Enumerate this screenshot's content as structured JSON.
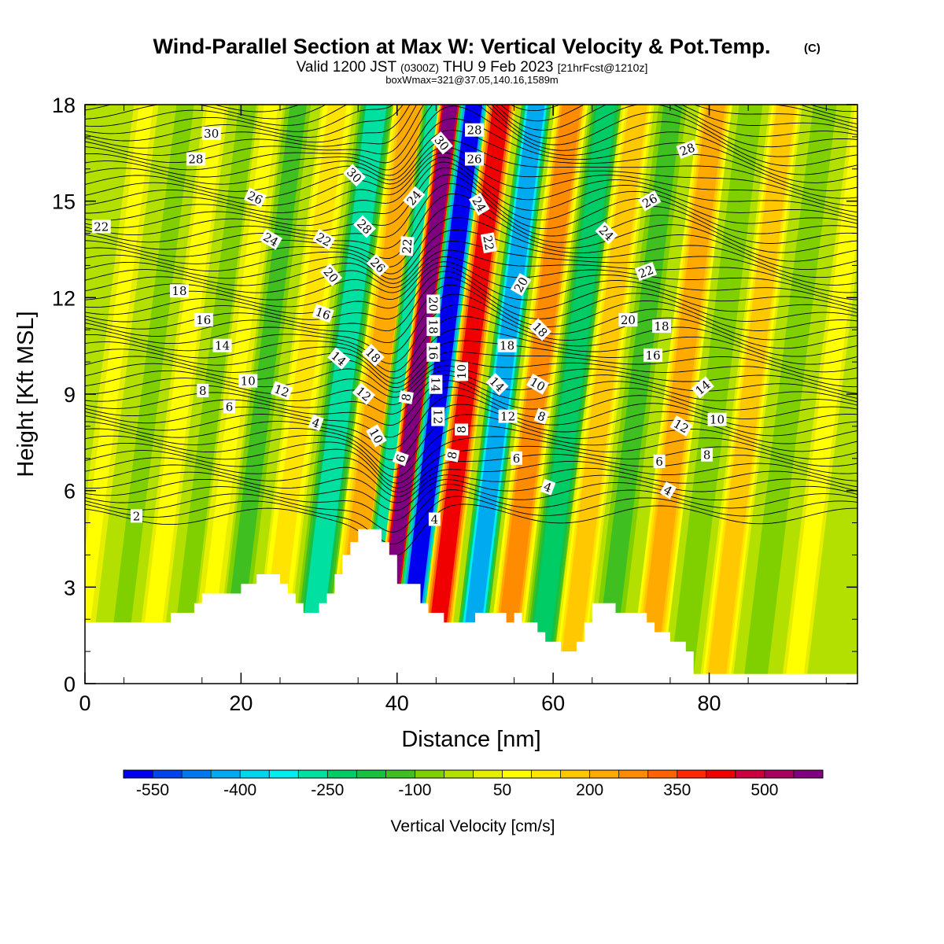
{
  "title": "Wind-Parallel Section at Max W: Vertical Velocity & Pot.Temp.",
  "title_mark": "(C)",
  "subtitle_main": "Valid 1200 JST",
  "subtitle_utc": "(0300Z)",
  "subtitle_date": "THU 9 Feb 2023",
  "subtitle_fcst": "[21hrFcst@1210z]",
  "subtitle_box": "boxWmax=321@37.05,140.16,1589m",
  "chart_data": {
    "type": "heatmap",
    "xlabel": "Distance [nm]",
    "ylabel": "Height [Kft MSL]",
    "xlim": [
      0,
      99
    ],
    "ylim": [
      0,
      18
    ],
    "x_ticks": [
      0,
      20,
      40,
      60,
      80
    ],
    "y_ticks": [
      0,
      3,
      6,
      9,
      12,
      15,
      18
    ],
    "colorbar": {
      "title": "Vertical Velocity [cm/s]",
      "labels": [
        "-550",
        "-400",
        "-250",
        "-100",
        "50",
        "200",
        "350",
        "500"
      ],
      "label_values": [
        -550,
        -400,
        -250,
        -100,
        50,
        200,
        350,
        500
      ],
      "range": [
        -600,
        600
      ],
      "levels": [
        -550,
        -500,
        -450,
        -400,
        -350,
        -300,
        -250,
        -200,
        -150,
        -100,
        -50,
        0,
        50,
        100,
        150,
        200,
        250,
        300,
        350,
        400,
        450,
        500,
        550
      ],
      "colors": [
        "#0000f0",
        "#0044ee",
        "#0078f0",
        "#00aaf0",
        "#00d4ee",
        "#00eeee",
        "#00e0a0",
        "#00cc66",
        "#18c040",
        "#40c020",
        "#80d000",
        "#b4e000",
        "#e6ee00",
        "#ffff00",
        "#ffe400",
        "#ffc800",
        "#ffaa00",
        "#ff8c00",
        "#ff6400",
        "#ff2800",
        "#f00000",
        "#cc0040",
        "#aa0060",
        "#800080"
      ]
    },
    "vertical_velocity_bands": [
      {
        "x": 0.5,
        "w": 1.2,
        "v": -20
      },
      {
        "x": 2,
        "w": 1.5,
        "v": 60
      },
      {
        "x": 7,
        "w": 1.5,
        "v": -70
      },
      {
        "x": 11,
        "w": 1.5,
        "v": 70
      },
      {
        "x": 15,
        "w": 1.5,
        "v": -70
      },
      {
        "x": 18,
        "w": 1.5,
        "v": 60
      },
      {
        "x": 21.5,
        "w": 1.8,
        "v": -120
      },
      {
        "x": 26.5,
        "w": 2,
        "v": 120
      },
      {
        "x": 31.5,
        "w": 2.2,
        "v": -260
      },
      {
        "x": 36,
        "w": 2.2,
        "v": 220
      },
      {
        "x": 39,
        "w": 1.5,
        "v": -300
      },
      {
        "x": 41,
        "w": 1.5,
        "v": 560
      },
      {
        "x": 44,
        "w": 1.8,
        "v": -560
      },
      {
        "x": 47.5,
        "w": 1.8,
        "v": 440
      },
      {
        "x": 52,
        "w": 1.8,
        "v": -430
      },
      {
        "x": 56.5,
        "w": 2,
        "v": 290
      },
      {
        "x": 61,
        "w": 2,
        "v": -210
      },
      {
        "x": 65,
        "w": 2,
        "v": 190
      },
      {
        "x": 69.5,
        "w": 2,
        "v": -120
      },
      {
        "x": 75,
        "w": 2,
        "v": 230
      },
      {
        "x": 79.5,
        "w": 2,
        "v": -100
      },
      {
        "x": 84,
        "w": 2,
        "v": 160
      },
      {
        "x": 89,
        "w": 2,
        "v": -100
      },
      {
        "x": 94,
        "w": 1.5,
        "v": 70
      }
    ],
    "terrain": {
      "x": [
        0,
        11,
        11,
        14,
        14,
        15,
        15,
        16,
        16,
        20,
        20,
        22,
        22,
        25,
        25,
        26,
        26,
        27,
        27,
        28,
        28,
        30,
        30,
        31,
        31,
        32,
        32,
        33,
        33,
        34,
        34,
        35,
        35,
        38,
        38,
        39,
        39,
        40,
        40,
        43,
        43,
        44,
        44,
        46,
        46,
        50,
        50,
        52,
        52,
        54,
        54,
        55,
        55,
        56,
        56,
        58,
        58,
        59,
        59,
        61,
        61,
        63,
        63,
        64,
        64,
        65,
        65,
        67,
        67,
        68,
        68,
        72,
        72,
        73,
        73,
        75,
        75,
        77,
        77,
        78,
        78,
        99
      ],
      "y": [
        1.9,
        1.9,
        2.2,
        2.2,
        2.5,
        2.5,
        2.8,
        2.8,
        2.8,
        2.8,
        3.1,
        3.1,
        3.4,
        3.4,
        3.1,
        3.1,
        2.8,
        2.8,
        2.5,
        2.5,
        2.2,
        2.2,
        2.5,
        2.5,
        2.8,
        2.8,
        3.4,
        3.4,
        4.0,
        4.0,
        4.4,
        4.4,
        4.8,
        4.8,
        4.4,
        4.4,
        4.0,
        4.0,
        3.1,
        3.1,
        2.5,
        2.5,
        2.2,
        2.2,
        1.9,
        1.9,
        2.2,
        2.2,
        2.2,
        2.2,
        1.9,
        1.9,
        2.2,
        2.2,
        1.9,
        1.9,
        1.6,
        1.6,
        1.3,
        1.3,
        1.0,
        1.0,
        1.3,
        1.3,
        1.9,
        1.9,
        2.5,
        2.5,
        2.5,
        2.5,
        2.2,
        2.2,
        1.9,
        1.9,
        1.6,
        1.6,
        1.3,
        1.3,
        1.0,
        1.0,
        0.3,
        0.3
      ]
    },
    "pot_temp_contours": {
      "unit": "C",
      "levels": [
        2,
        4,
        6,
        8,
        10,
        12,
        14,
        16,
        18,
        20,
        22,
        24,
        26,
        28,
        30
      ],
      "labels": [
        {
          "text": "30",
          "x": 16.2,
          "y": 17.1,
          "angle": 0
        },
        {
          "text": "28",
          "x": 14.2,
          "y": 16.3,
          "angle": 0
        },
        {
          "text": "26",
          "x": 21.8,
          "y": 15.1,
          "angle": 25
        },
        {
          "text": "22",
          "x": 2.1,
          "y": 14.2,
          "angle": 0
        },
        {
          "text": "24",
          "x": 23.8,
          "y": 13.8,
          "angle": 30
        },
        {
          "text": "22",
          "x": 30.6,
          "y": 13.8,
          "angle": 30
        },
        {
          "text": "20",
          "x": 31.5,
          "y": 12.7,
          "angle": 50
        },
        {
          "text": "18",
          "x": 12.1,
          "y": 12.2,
          "angle": 0
        },
        {
          "text": "16",
          "x": 15.2,
          "y": 11.3,
          "angle": 0
        },
        {
          "text": "16",
          "x": 30.5,
          "y": 11.5,
          "angle": 20
        },
        {
          "text": "14",
          "x": 17.6,
          "y": 10.5,
          "angle": 0
        },
        {
          "text": "14",
          "x": 32.5,
          "y": 10.1,
          "angle": 40
        },
        {
          "text": "10",
          "x": 20.9,
          "y": 9.4,
          "angle": 0
        },
        {
          "text": "12",
          "x": 25.2,
          "y": 9.1,
          "angle": 20
        },
        {
          "text": "8",
          "x": 15.1,
          "y": 9.1,
          "angle": 0
        },
        {
          "text": "6",
          "x": 18.5,
          "y": 8.6,
          "angle": 0
        },
        {
          "text": "4",
          "x": 29.6,
          "y": 8.1,
          "angle": 20
        },
        {
          "text": "2",
          "x": 6.6,
          "y": 5.2,
          "angle": 0
        },
        {
          "text": "30",
          "x": 34.5,
          "y": 15.8,
          "angle": 45
        },
        {
          "text": "28",
          "x": 35.8,
          "y": 14.2,
          "angle": 45
        },
        {
          "text": "26",
          "x": 37.5,
          "y": 13.0,
          "angle": 45
        },
        {
          "text": "18",
          "x": 36.9,
          "y": 10.2,
          "angle": 45
        },
        {
          "text": "12",
          "x": 35.7,
          "y": 9.0,
          "angle": 40
        },
        {
          "text": "10",
          "x": 37.3,
          "y": 7.7,
          "angle": 60
        },
        {
          "text": "8",
          "x": 41.2,
          "y": 8.9,
          "angle": -80
        },
        {
          "text": "6",
          "x": 40.5,
          "y": 7.0,
          "angle": -70
        },
        {
          "text": "24",
          "x": 42.2,
          "y": 15.1,
          "angle": -50
        },
        {
          "text": "22",
          "x": 41.3,
          "y": 13.6,
          "angle": -85
        },
        {
          "text": "30",
          "x": 45.7,
          "y": 16.8,
          "angle": 50
        },
        {
          "text": "28",
          "x": 49.9,
          "y": 17.2,
          "angle": 0
        },
        {
          "text": "26",
          "x": 49.9,
          "y": 16.3,
          "angle": 0
        },
        {
          "text": "24",
          "x": 50.5,
          "y": 14.9,
          "angle": 60
        },
        {
          "text": "22",
          "x": 51.7,
          "y": 13.7,
          "angle": 80
        },
        {
          "text": "20",
          "x": 44.6,
          "y": 11.8,
          "angle": 90
        },
        {
          "text": "18",
          "x": 44.6,
          "y": 11.1,
          "angle": 90
        },
        {
          "text": "16",
          "x": 44.6,
          "y": 10.3,
          "angle": 90
        },
        {
          "text": "14",
          "x": 44.9,
          "y": 9.3,
          "angle": 90
        },
        {
          "text": "12",
          "x": 45.2,
          "y": 8.3,
          "angle": 90
        },
        {
          "text": "4",
          "x": 44.8,
          "y": 5.1,
          "angle": 0
        },
        {
          "text": "10",
          "x": 48.3,
          "y": 9.7,
          "angle": -90
        },
        {
          "text": "8",
          "x": 48.3,
          "y": 7.9,
          "angle": -90
        },
        {
          "text": "8",
          "x": 47.1,
          "y": 7.1,
          "angle": -80
        },
        {
          "text": "20",
          "x": 55.9,
          "y": 12.4,
          "angle": -60
        },
        {
          "text": "18",
          "x": 58.3,
          "y": 11.0,
          "angle": 45
        },
        {
          "text": "18",
          "x": 54.1,
          "y": 10.5,
          "angle": 0
        },
        {
          "text": "14",
          "x": 52.8,
          "y": 9.3,
          "angle": 45
        },
        {
          "text": "10",
          "x": 58.0,
          "y": 9.3,
          "angle": 30
        },
        {
          "text": "12",
          "x": 54.2,
          "y": 8.3,
          "angle": 0
        },
        {
          "text": "8",
          "x": 58.5,
          "y": 8.3,
          "angle": 20
        },
        {
          "text": "6",
          "x": 55.3,
          "y": 7.0,
          "angle": 0
        },
        {
          "text": "4",
          "x": 59.3,
          "y": 6.1,
          "angle": 20
        },
        {
          "text": "24",
          "x": 66.8,
          "y": 14.0,
          "angle": 45
        },
        {
          "text": "26",
          "x": 72.4,
          "y": 15.0,
          "angle": -30
        },
        {
          "text": "28",
          "x": 77.2,
          "y": 16.6,
          "angle": -20
        },
        {
          "text": "22",
          "x": 71.9,
          "y": 12.8,
          "angle": -20
        },
        {
          "text": "20",
          "x": 69.6,
          "y": 11.3,
          "angle": 0
        },
        {
          "text": "18",
          "x": 73.9,
          "y": 11.1,
          "angle": 0
        },
        {
          "text": "16",
          "x": 72.8,
          "y": 10.2,
          "angle": 0
        },
        {
          "text": "14",
          "x": 79.2,
          "y": 9.2,
          "angle": -40
        },
        {
          "text": "10",
          "x": 81.0,
          "y": 8.2,
          "angle": 0
        },
        {
          "text": "12",
          "x": 76.4,
          "y": 8.0,
          "angle": 30
        },
        {
          "text": "8",
          "x": 79.7,
          "y": 7.1,
          "angle": 0
        },
        {
          "text": "6",
          "x": 73.6,
          "y": 6.9,
          "angle": 0
        },
        {
          "text": "4",
          "x": 74.7,
          "y": 6.0,
          "angle": 30
        }
      ]
    }
  }
}
